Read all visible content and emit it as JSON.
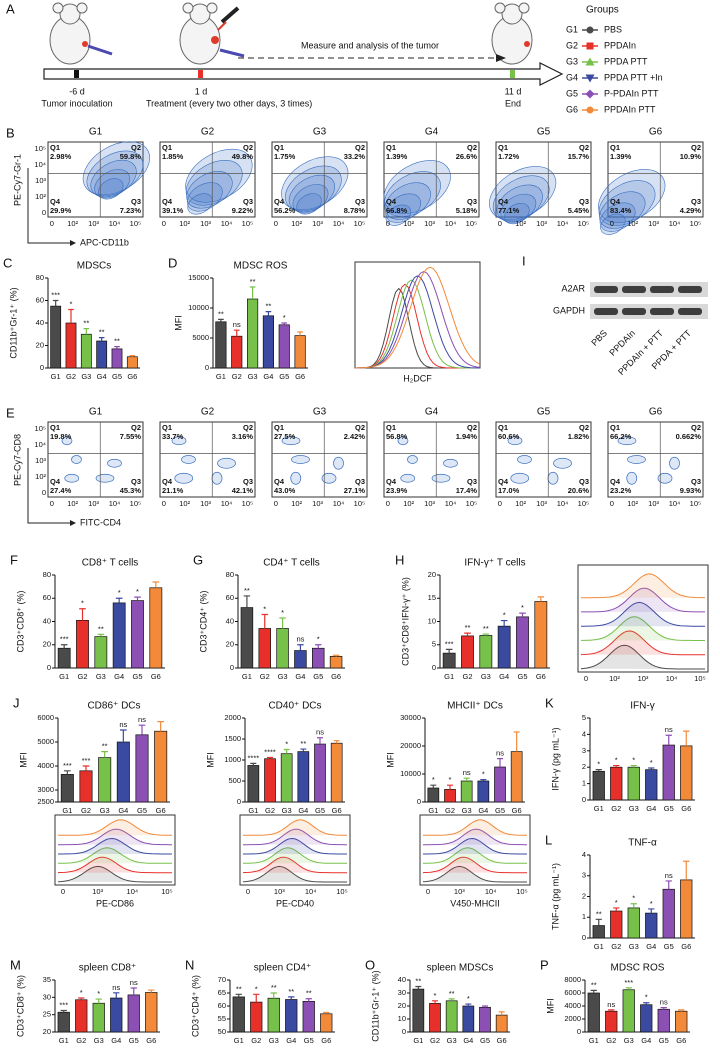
{
  "panel_a": {
    "letter": "A",
    "timeline": [
      {
        "day": "-6 d",
        "label": "Tumor inoculation"
      },
      {
        "day": "1 d",
        "label": "Treatment (every two other days, 3 times)"
      },
      {
        "day": "11 d",
        "label": "End"
      }
    ],
    "arrow_label": "Measure and analysis of the tumor"
  },
  "groups": {
    "title": "Groups",
    "items": [
      {
        "id": "G1",
        "name": "PBS",
        "color": "#4a4a4a",
        "marker": "circle"
      },
      {
        "id": "G2",
        "name": "PPDAIn",
        "color": "#e8302b",
        "marker": "square"
      },
      {
        "id": "G3",
        "name": "PPDA PTT",
        "color": "#77c04a",
        "marker": "triangle-up"
      },
      {
        "id": "G4",
        "name": "PPDA PTT +In",
        "color": "#3a4aa0",
        "marker": "triangle-down"
      },
      {
        "id": "G5",
        "name": "P-PDAIn PTT",
        "color": "#8c4fb3",
        "marker": "diamond"
      },
      {
        "id": "G6",
        "name": "PPDAIn PTT",
        "color": "#f28a3a",
        "marker": "circle"
      }
    ]
  },
  "flow": [
    {
      "letter": "B",
      "x_label": "APC-CD11b",
      "y_label": "PE-Cy7-Gr-1",
      "axis_ticks": [
        "0",
        "10²",
        "10³",
        "10⁴",
        "10⁵"
      ],
      "quadrants": [
        "Q1",
        "Q2",
        "Q3",
        "Q4"
      ],
      "plots": [
        {
          "title": "G1",
          "values": [
            "2.98%",
            "59.8%",
            "7.23%",
            "29.9%"
          ]
        },
        {
          "title": "G2",
          "values": [
            "1.85%",
            "49.8%",
            "9.22%",
            "39.1%"
          ]
        },
        {
          "title": "G3",
          "values": [
            "1.75%",
            "33.2%",
            "8.78%",
            "56.2%"
          ]
        },
        {
          "title": "G4",
          "values": [
            "1.39%",
            "26.6%",
            "5.18%",
            "66.8%"
          ]
        },
        {
          "title": "G5",
          "values": [
            "1.72%",
            "15.7%",
            "5.45%",
            "77.1%"
          ]
        },
        {
          "title": "G6",
          "values": [
            "1.39%",
            "10.9%",
            "4.29%",
            "83.4%"
          ]
        }
      ]
    },
    {
      "letter": "E",
      "x_label": "FITC-CD4",
      "y_label": "PE-Cy7-CD8",
      "axis_ticks": [
        "0",
        "10²",
        "10³",
        "10⁴",
        "10⁵"
      ],
      "quadrants": [
        "Q1",
        "Q2",
        "Q3",
        "Q4"
      ],
      "plots": [
        {
          "title": "G1",
          "values": [
            "19.8%",
            "7.55%",
            "45.3%",
            "27.4%"
          ]
        },
        {
          "title": "G2",
          "values": [
            "33.7%",
            "3.16%",
            "42.1%",
            "21.1%"
          ]
        },
        {
          "title": "G3",
          "values": [
            "27.5%",
            "2.42%",
            "27.1%",
            "43.0%"
          ]
        },
        {
          "title": "G4",
          "values": [
            "56.8%",
            "1.94%",
            "17.4%",
            "23.9%"
          ]
        },
        {
          "title": "G5",
          "values": [
            "60.6%",
            "1.82%",
            "20.6%",
            "17.0%"
          ]
        },
        {
          "title": "G6",
          "values": [
            "66.2%",
            "0.662%",
            "9.93%",
            "23.2%"
          ]
        }
      ]
    }
  ],
  "blot": {
    "letter": "I",
    "bands": [
      "A2AR",
      "GAPDH"
    ],
    "lanes": [
      "PBS",
      "PPDAIn",
      "PPDAIn + PTT",
      "PPDA + PTT"
    ]
  },
  "histograms": [
    {
      "x_label": "H₂DCF"
    },
    {
      "ticks": [
        "0",
        "10²",
        "10³",
        "10⁴",
        "10⁵"
      ]
    },
    {
      "x_label": "PE-CD86",
      "ticks": [
        "0",
        "10³",
        "10⁴",
        "10⁵"
      ]
    },
    {
      "x_label": "PE-CD40",
      "ticks": [
        "0",
        "10³",
        "10⁴",
        "10⁵"
      ]
    },
    {
      "x_label": "V450-MHCII",
      "ticks": [
        "0",
        "10³",
        "10⁴",
        "10⁵"
      ]
    }
  ],
  "chart_data": [
    {
      "type": "bar",
      "panel": "C",
      "title": "MDSCs",
      "y_label": "CD11b⁺Gr-1⁺ (%)",
      "categories": [
        "G1",
        "G2",
        "G3",
        "G4",
        "G5",
        "G6"
      ],
      "values": [
        55,
        40,
        30,
        24,
        17,
        10
      ],
      "errors": [
        5,
        12,
        5,
        3,
        2,
        1
      ],
      "annotations": [
        "***",
        "*",
        "**",
        "**",
        "**",
        null
      ],
      "ylim": [
        0,
        80
      ],
      "yticks": [
        0,
        20,
        40,
        60,
        80
      ]
    },
    {
      "type": "bar",
      "panel": "D",
      "title": "MDSC ROS",
      "y_label": "MFI",
      "categories": [
        "G1",
        "G2",
        "G3",
        "G4",
        "G5",
        "G6"
      ],
      "values": [
        7700,
        5300,
        11500,
        8700,
        7200,
        5400
      ],
      "errors": [
        400,
        1000,
        2000,
        700,
        300,
        600
      ],
      "annotations": [
        "**",
        "ns",
        "**",
        "**",
        "*",
        null
      ],
      "ylim": [
        0,
        15000
      ],
      "yticks": [
        0,
        5000,
        10000,
        15000
      ]
    },
    {
      "type": "bar",
      "panel": "F",
      "title": "CD8⁺ T cells",
      "y_label": "CD3⁺CD8⁺ (%)",
      "categories": [
        "G1",
        "G2",
        "G3",
        "G4",
        "G5",
        "G6"
      ],
      "values": [
        17,
        41,
        27,
        56,
        58,
        69
      ],
      "errors": [
        3,
        10,
        2,
        4,
        3,
        5
      ],
      "annotations": [
        "***",
        "*",
        "**",
        "*",
        "*",
        null
      ],
      "ylim": [
        0,
        80
      ],
      "yticks": [
        0,
        20,
        40,
        60,
        80
      ]
    },
    {
      "type": "bar",
      "panel": "G",
      "title": "CD4⁺ T cells",
      "y_label": "CD3⁺CD4⁺ (%)",
      "categories": [
        "G1",
        "G2",
        "G3",
        "G4",
        "G5",
        "G6"
      ],
      "values": [
        52,
        34,
        34,
        15,
        17,
        10
      ],
      "errors": [
        10,
        12,
        9,
        5,
        3,
        1
      ],
      "annotations": [
        "**",
        "*",
        "*",
        "ns",
        "*",
        null
      ],
      "ylim": [
        0,
        80
      ],
      "yticks": [
        0,
        20,
        40,
        60,
        80
      ]
    },
    {
      "type": "bar",
      "panel": "H",
      "title": "IFN-γ⁺ T cells",
      "y_label": "CD3⁺CD8⁺IFN-γ⁺ (%)",
      "categories": [
        "G1",
        "G2",
        "G3",
        "G4",
        "G5",
        "G6"
      ],
      "values": [
        3.2,
        6.9,
        7,
        9,
        11,
        14.3
      ],
      "errors": [
        0.8,
        0.6,
        0.3,
        1.2,
        0.8,
        1
      ],
      "annotations": [
        "***",
        "**",
        "**",
        "*",
        "*",
        null
      ],
      "ylim": [
        0,
        20
      ],
      "yticks": [
        0,
        5,
        10,
        15,
        20
      ]
    },
    {
      "type": "bar",
      "panel": "J",
      "title": "CD86⁺ DCs",
      "y_label": "MFI",
      "categories": [
        "G1",
        "G2",
        "G3",
        "G4",
        "G5",
        "G6"
      ],
      "values": [
        3650,
        3800,
        4350,
        5000,
        5300,
        5450
      ],
      "errors": [
        150,
        200,
        250,
        500,
        400,
        400
      ],
      "annotations": [
        "***",
        "***",
        "**",
        "ns",
        "ns",
        null
      ],
      "ylim": [
        2500,
        6000
      ],
      "yticks": [
        2500,
        3000,
        4000,
        5000,
        6000
      ]
    },
    {
      "type": "bar",
      "title": "CD40⁺ DCs",
      "y_label": "MFI",
      "categories": [
        "G1",
        "G2",
        "G3",
        "G4",
        "G5",
        "G6"
      ],
      "values": [
        870,
        1030,
        1150,
        1200,
        1380,
        1400
      ],
      "errors": [
        50,
        30,
        100,
        60,
        150,
        60
      ],
      "annotations": [
        "****",
        "****",
        "*",
        "**",
        "ns",
        null
      ],
      "ylim": [
        0,
        2000
      ],
      "yticks": [
        0,
        500,
        1000,
        1500,
        2000
      ]
    },
    {
      "type": "bar",
      "title": "MHCII⁺ DCs",
      "y_label": "MFI",
      "categories": [
        "G1",
        "G2",
        "G3",
        "G4",
        "G5",
        "G6"
      ],
      "values": [
        5000,
        4500,
        7500,
        7500,
        12500,
        18000
      ],
      "errors": [
        1000,
        1500,
        1000,
        500,
        3000,
        7000
      ],
      "annotations": [
        "*",
        "*",
        "ns",
        "*",
        "ns",
        null
      ],
      "ylim": [
        0,
        30000
      ],
      "yticks": [
        0,
        10000,
        20000,
        30000
      ]
    },
    {
      "type": "bar",
      "panel": "K",
      "title": "IFN-γ",
      "y_label": "IFN-γ (pg mL⁻¹)",
      "categories": [
        "G1",
        "G2",
        "G3",
        "G4",
        "G5",
        "G6"
      ],
      "values": [
        1.75,
        2,
        2,
        1.85,
        3.35,
        3.3
      ],
      "errors": [
        0.1,
        0.1,
        0.1,
        0.1,
        0.6,
        0.9
      ],
      "annotations": [
        "*",
        "*",
        "*",
        "*",
        "ns",
        null
      ],
      "ylim": [
        0,
        5
      ],
      "yticks": [
        0,
        1,
        2,
        3,
        4,
        5
      ]
    },
    {
      "type": "bar",
      "panel": "L",
      "title": "TNF-α",
      "y_label": "TNF-α (pg mL⁻¹)",
      "categories": [
        "G1",
        "G2",
        "G3",
        "G4",
        "G5",
        "G6"
      ],
      "values": [
        0.6,
        1.3,
        1.45,
        1.2,
        2.35,
        2.8
      ],
      "errors": [
        0.3,
        0.15,
        0.2,
        0.2,
        0.4,
        0.9
      ],
      "annotations": [
        "**",
        "*",
        "*",
        "*",
        "ns",
        null
      ],
      "ylim": [
        0,
        4
      ],
      "yticks": [
        0,
        1,
        2,
        3,
        4
      ]
    },
    {
      "type": "bar",
      "panel": "M",
      "title": "spleen CD8⁺",
      "y_label": "CD3⁺CD8⁺ (%)",
      "categories": [
        "G1",
        "G2",
        "G3",
        "G4",
        "G5",
        "G6"
      ],
      "values": [
        25.7,
        29.3,
        28.3,
        29.8,
        30.7,
        31.4
      ],
      "errors": [
        0.5,
        0.5,
        1.2,
        1.5,
        2,
        0.7
      ],
      "annotations": [
        "***",
        "*",
        "*",
        "ns",
        "ns",
        null
      ],
      "ylim": [
        20,
        35
      ],
      "yticks": [
        20,
        25,
        30,
        35
      ]
    },
    {
      "type": "bar",
      "panel": "N",
      "title": "spleen CD4⁺",
      "y_label": "CD3⁺CD4⁺ (%)",
      "categories": [
        "G1",
        "G2",
        "G3",
        "G4",
        "G5",
        "G6"
      ],
      "values": [
        63.5,
        61.5,
        63,
        62.5,
        61.8,
        57
      ],
      "errors": [
        1,
        3,
        2,
        1,
        1,
        0.5
      ],
      "annotations": [
        "**",
        "*",
        "**",
        "**",
        "**",
        null
      ],
      "ylim": [
        50,
        70
      ],
      "yticks": [
        50,
        55,
        60,
        65,
        70
      ]
    },
    {
      "type": "bar",
      "panel": "O",
      "title": "spleen MDSCs",
      "y_label": "CD11b⁺Gr-1⁺ (%)",
      "categories": [
        "G1",
        "G2",
        "G3",
        "G4",
        "G5",
        "G6"
      ],
      "values": [
        33,
        22,
        24,
        20,
        19,
        13
      ],
      "errors": [
        2,
        2,
        1.5,
        1.5,
        1,
        2.5
      ],
      "annotations": [
        "**",
        "*",
        "**",
        "*",
        null,
        null
      ],
      "ylim": [
        0,
        40
      ],
      "yticks": [
        0,
        10,
        20,
        30,
        40
      ]
    },
    {
      "type": "bar",
      "panel": "P",
      "title": "MDSC ROS",
      "y_label": "MFI",
      "categories": [
        "G1",
        "G2",
        "G3",
        "G4",
        "G5",
        "G6"
      ],
      "values": [
        6000,
        3200,
        6500,
        4200,
        3500,
        3200
      ],
      "errors": [
        400,
        200,
        300,
        300,
        250,
        200
      ],
      "annotations": [
        "**",
        "ns",
        "***",
        "*",
        "ns",
        null
      ],
      "ylim": [
        0,
        8000
      ],
      "yticks": [
        0,
        2000,
        4000,
        6000,
        8000
      ]
    }
  ]
}
